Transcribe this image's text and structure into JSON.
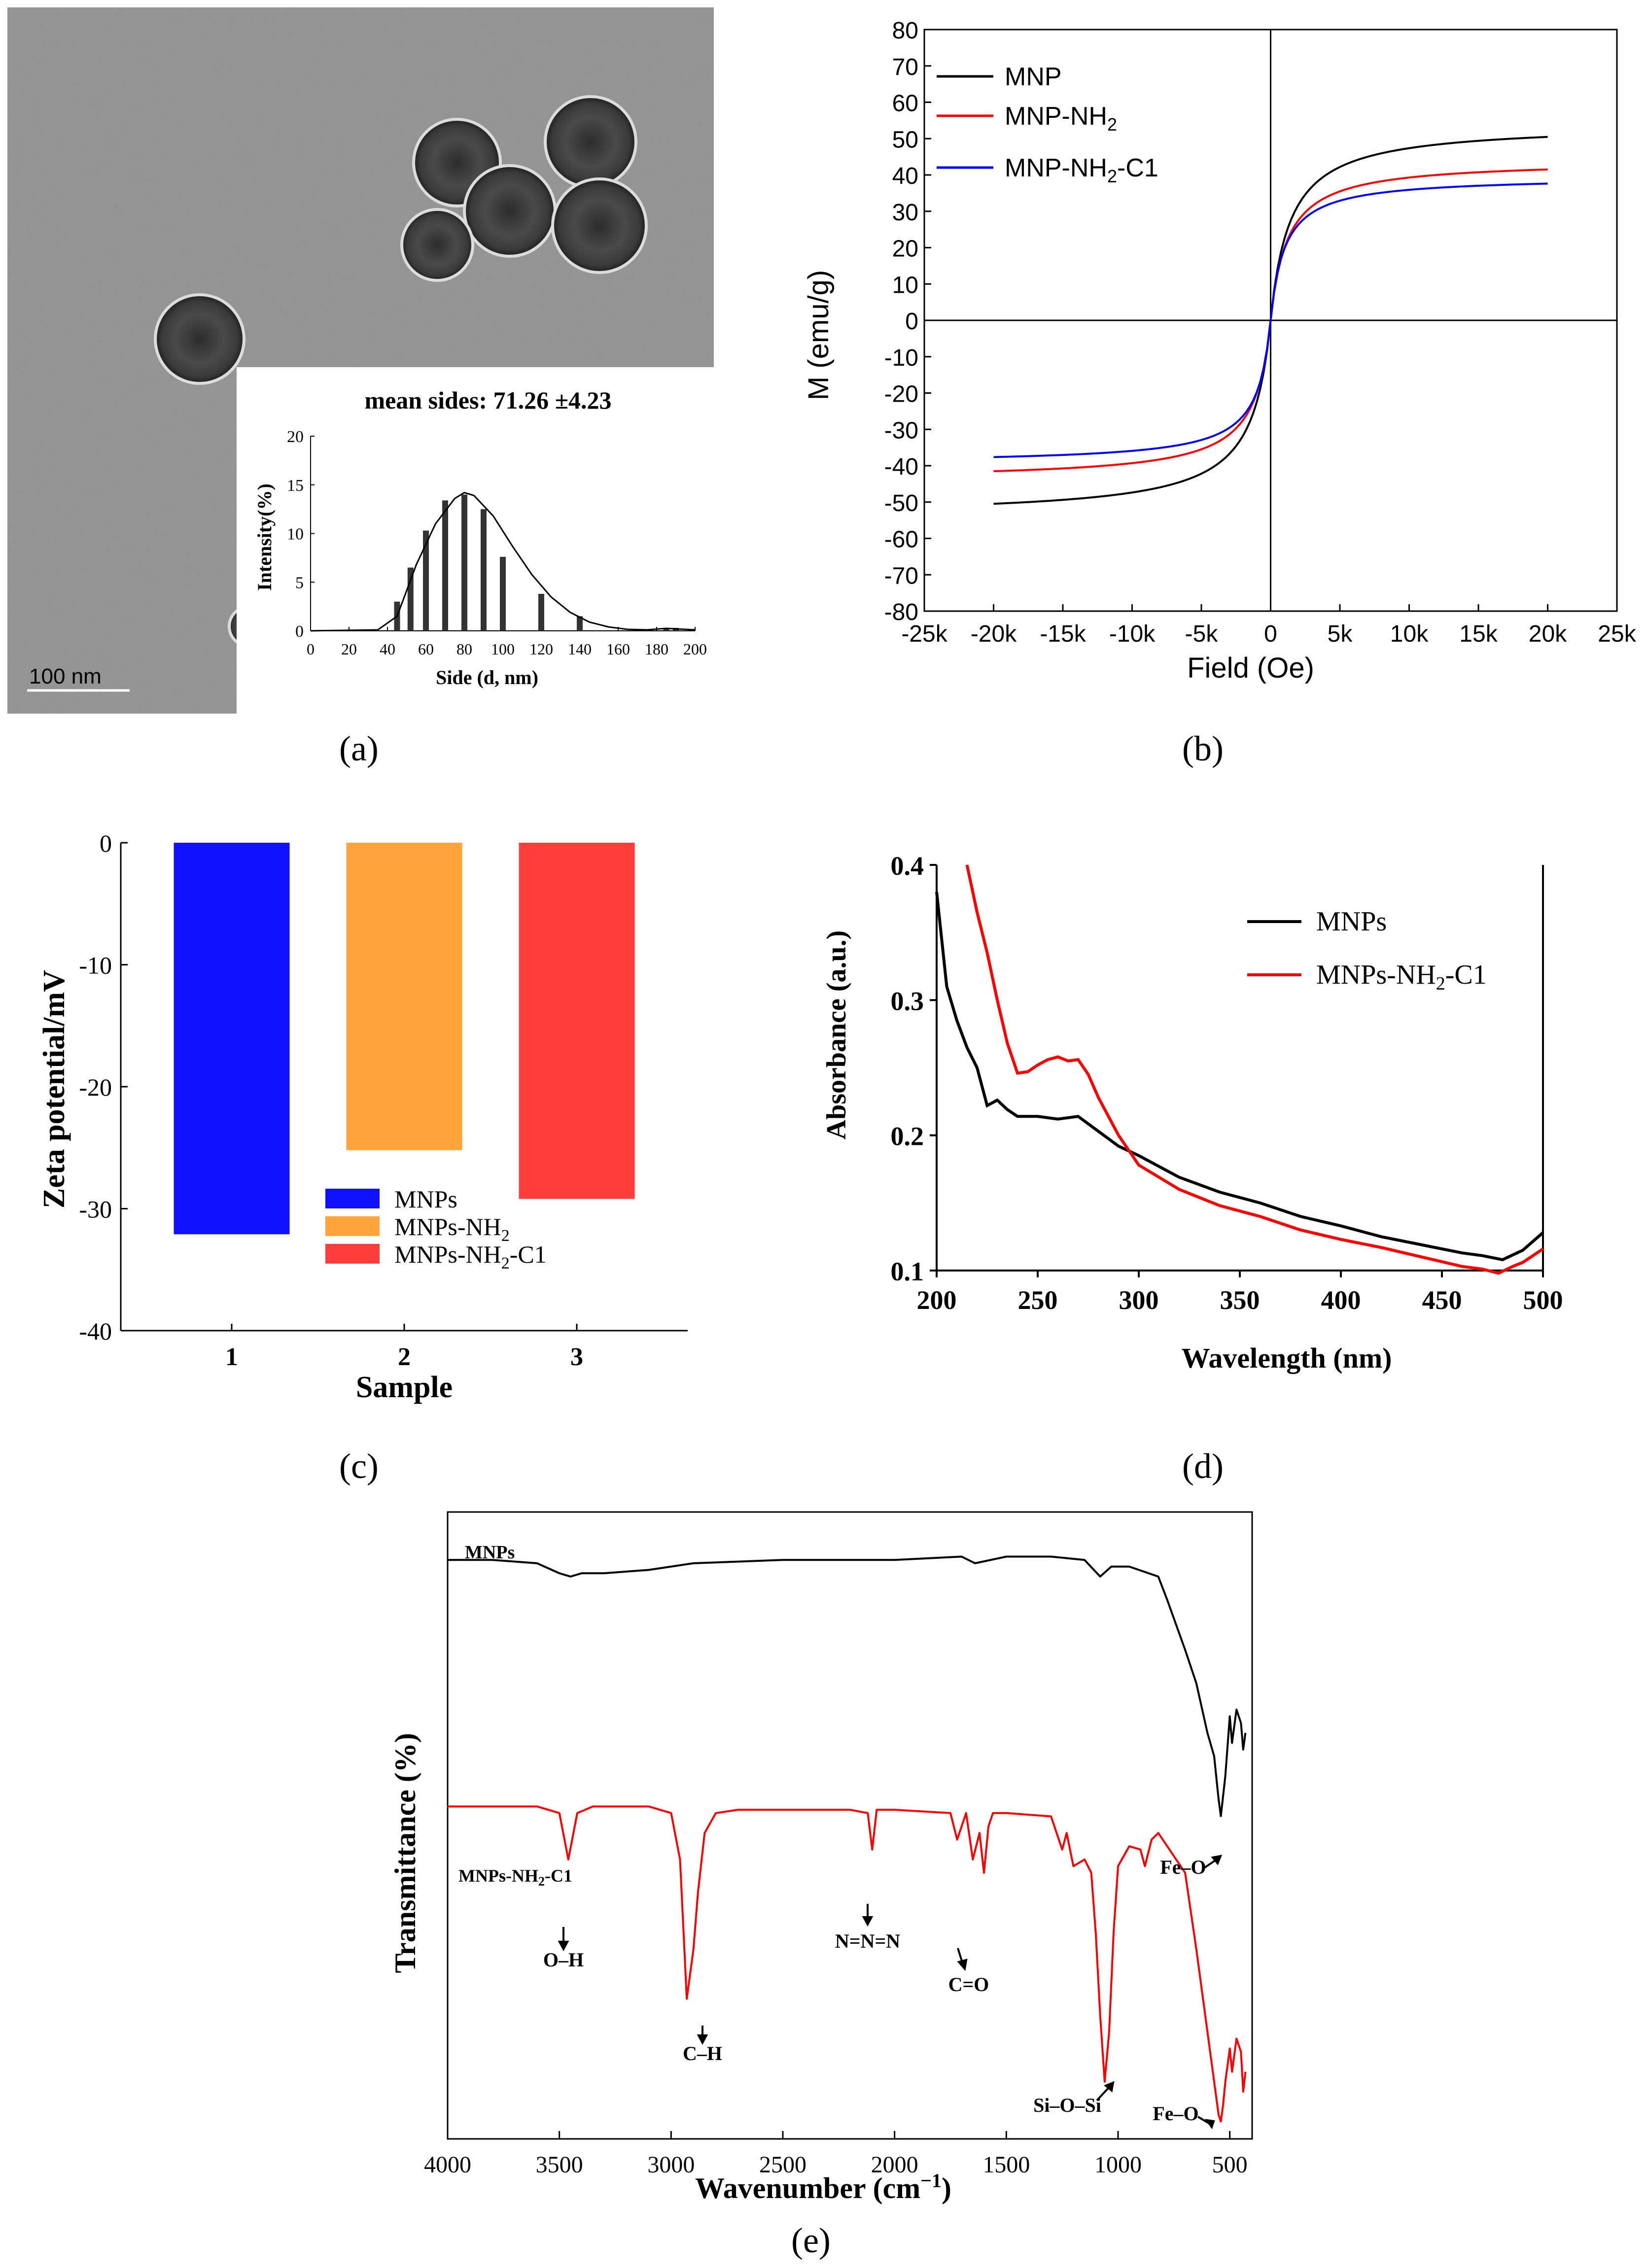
{
  "panels": {
    "a": "(a)",
    "b": "(b)",
    "c": "(c)",
    "d": "(d)",
    "e": "(e)"
  },
  "tem": {
    "scale_bar_label": "100 nm"
  },
  "colors": {
    "black": "#000000",
    "red": "#ff0000",
    "blue": "#0000ff",
    "bar_blue": "#1010ff",
    "bar_orange": "#ffa43a",
    "bar_red": "#ff3c3c"
  },
  "chart_data": [
    {
      "id": "a-inset",
      "type": "bar",
      "title": "mean sides: 71.26 ±4.23",
      "xlabel": "Side (d, nm)",
      "ylabel": "Intensity(%)",
      "xlim": [
        0,
        200
      ],
      "ylim": [
        0,
        20
      ],
      "xticks": [
        "0",
        "20",
        "40",
        "60",
        "80",
        "100",
        "120",
        "140",
        "160",
        "180",
        "200"
      ],
      "yticks": [
        "0",
        "5",
        "10",
        "15",
        "20"
      ],
      "x": [
        45,
        52,
        60,
        70,
        80,
        90,
        100,
        120,
        140,
        185,
        190
      ],
      "values": [
        3.0,
        6.5,
        10.3,
        13.4,
        14.0,
        12.5,
        7.6,
        3.8,
        1.5,
        0.2,
        0.3
      ],
      "fit_x": [
        0,
        35,
        45,
        55,
        65,
        75,
        80,
        85,
        95,
        105,
        115,
        125,
        135,
        145,
        155,
        165,
        175,
        185,
        200
      ],
      "fit_y": [
        0,
        0.1,
        1.5,
        6.8,
        11.0,
        13.6,
        14.2,
        13.9,
        11.8,
        8.7,
        5.8,
        3.5,
        1.9,
        0.9,
        0.4,
        0.15,
        0.1,
        0.25,
        0.1
      ]
    },
    {
      "id": "b",
      "type": "line",
      "xlabel": "Field (Oe)",
      "ylabel": "M (emu/g)",
      "xlim": [
        -25000,
        25000
      ],
      "ylim": [
        -80,
        80
      ],
      "xticks": [
        "-25k",
        "-20k",
        "-15k",
        "-10k",
        "-5k",
        "0",
        "5k",
        "10k",
        "15k",
        "20k",
        "25k"
      ],
      "yticks": [
        "-80",
        "-70",
        "-60",
        "-50",
        "-40",
        "-30",
        "-20",
        "-10",
        "0",
        "10",
        "20",
        "30",
        "40",
        "50",
        "60",
        "70",
        "80"
      ],
      "series": [
        {
          "name": "MNP",
          "name_main": "MNP",
          "name_sub": "",
          "name_tail": "",
          "color": "#000000",
          "ms": 54.0,
          "a": 1400
        },
        {
          "name": "MNP-NH2",
          "name_main": "MNP-NH",
          "name_sub": "2",
          "name_tail": "",
          "color": "#ff0000",
          "ms": 44.0,
          "a": 1200
        },
        {
          "name": "MNP-NH2-C1",
          "name_main": "MNP-NH",
          "name_sub": "2",
          "name_tail": "-C1",
          "color": "#0000ff",
          "ms": 39.5,
          "a": 1000
        }
      ]
    },
    {
      "id": "c",
      "type": "bar",
      "xlabel": "Sample",
      "ylabel": "Zeta potential/mV",
      "ylim": [
        -40,
        0
      ],
      "categories": [
        "1",
        "2",
        "3"
      ],
      "yticks": [
        "0",
        "-10",
        "-20",
        "-30",
        "-40"
      ],
      "values": [
        -32.1,
        -25.2,
        -29.2
      ],
      "legend": [
        {
          "main": "MNPs",
          "sub": "",
          "tail": ""
        },
        {
          "main": "MNPs-NH",
          "sub": "2",
          "tail": ""
        },
        {
          "main": "MNPs-NH",
          "sub": "2",
          "tail": "-C1"
        }
      ]
    },
    {
      "id": "d",
      "type": "line",
      "xlabel": "Wavelength (nm)",
      "ylabel": "Absorbance (a.u.)",
      "xlim": [
        200,
        500
      ],
      "ylim": [
        0.1,
        0.4
      ],
      "xticks": [
        "200",
        "250",
        "300",
        "350",
        "400",
        "450",
        "500"
      ],
      "yticks": [
        "0.1",
        "0.2",
        "0.3",
        "0.4"
      ],
      "series": [
        {
          "name": "MNPs",
          "name_main": "MNPs",
          "name_sub": "",
          "name_tail": "",
          "color": "#000000",
          "x": [
            200,
            205,
            210,
            215,
            220,
            225,
            230,
            235,
            240,
            250,
            260,
            270,
            280,
            290,
            300,
            320,
            340,
            360,
            380,
            400,
            420,
            440,
            460,
            470,
            480,
            490,
            500
          ],
          "y": [
            0.38,
            0.31,
            0.285,
            0.265,
            0.25,
            0.222,
            0.226,
            0.219,
            0.214,
            0.214,
            0.212,
            0.214,
            0.203,
            0.192,
            0.185,
            0.169,
            0.158,
            0.15,
            0.14,
            0.133,
            0.125,
            0.119,
            0.113,
            0.111,
            0.108,
            0.115,
            0.128
          ]
        },
        {
          "name": "MNPs-NH2-C1",
          "name_main": "MNPs-NH",
          "name_sub": "2",
          "name_tail": "-C1",
          "color": "#ff0000",
          "x": [
            215,
            220,
            225,
            230,
            235,
            240,
            245,
            250,
            255,
            260,
            265,
            270,
            275,
            280,
            290,
            300,
            320,
            340,
            360,
            380,
            400,
            420,
            440,
            460,
            470,
            478,
            485,
            490,
            500
          ],
          "y": [
            0.4,
            0.365,
            0.335,
            0.3,
            0.268,
            0.246,
            0.247,
            0.252,
            0.256,
            0.258,
            0.255,
            0.256,
            0.245,
            0.228,
            0.2,
            0.178,
            0.16,
            0.148,
            0.14,
            0.13,
            0.123,
            0.117,
            0.11,
            0.103,
            0.101,
            0.098,
            0.103,
            0.106,
            0.116
          ]
        }
      ]
    },
    {
      "id": "e",
      "type": "line",
      "xlabel": "Wavenumber (cm",
      "xlabel_sup": "−1",
      "xlabel_tail": ")",
      "ylabel": "Transmittance (%)",
      "xlim": [
        4000,
        400
      ],
      "xticks": [
        "4000",
        "3500",
        "3000",
        "2500",
        "2000",
        "1500",
        "1000",
        "500"
      ],
      "series": [
        {
          "name": "MNPs",
          "color": "#000000",
          "x": [
            4000,
            3800,
            3600,
            3500,
            3450,
            3400,
            3300,
            3100,
            3000,
            2900,
            2500,
            2000,
            1700,
            1640,
            1500,
            1300,
            1150,
            1080,
            1030,
            950,
            820,
            780,
            700,
            650,
            600,
            570,
            550,
            540,
            520,
            500,
            490,
            470,
            450,
            440,
            430
          ],
          "y": [
            97,
            97,
            96,
            93,
            92,
            93,
            93,
            94,
            95,
            96,
            97,
            97,
            98,
            96,
            98,
            98,
            97,
            92,
            95,
            95,
            92,
            85,
            70,
            60,
            45,
            38,
            25,
            20,
            32,
            50,
            42,
            52,
            48,
            40,
            45
          ]
        },
        {
          "name": "MNPs-NH2-C1",
          "color": "#ff0000",
          "x": [
            4000,
            3600,
            3500,
            3460,
            3420,
            3350,
            3100,
            3000,
            2960,
            2930,
            2900,
            2880,
            2850,
            2800,
            2700,
            2200,
            2120,
            2100,
            2080,
            2000,
            1750,
            1720,
            1680,
            1650,
            1620,
            1600,
            1580,
            1560,
            1500,
            1300,
            1250,
            1230,
            1200,
            1150,
            1120,
            1100,
            1080,
            1060,
            1040,
            1020,
            1000,
            950,
            900,
            880,
            850,
            820,
            800,
            780,
            700,
            650,
            600,
            570,
            550,
            540,
            530,
            520,
            500,
            490,
            470,
            450,
            440,
            430
          ],
          "y": [
            98,
            98,
            96,
            82,
            96,
            98,
            98,
            96,
            82,
            40,
            55,
            72,
            90,
            96,
            97,
            97,
            96,
            85,
            97,
            97,
            96,
            88,
            96,
            82,
            90,
            78,
            92,
            96,
            96,
            95,
            85,
            90,
            80,
            82,
            78,
            60,
            35,
            15,
            30,
            60,
            80,
            86,
            85,
            80,
            88,
            90,
            88,
            86,
            78,
            55,
            30,
            15,
            5,
            3,
            8,
            15,
            25,
            18,
            28,
            24,
            12,
            18
          ]
        }
      ],
      "labels": {
        "mnps": "MNPs",
        "mnps_nh2_c1": "MNPs-NH2-C1",
        "oh": "O–H",
        "ch": "C–H",
        "nnn": "N=N=N",
        "co": "C=O",
        "siosi": "Si–O–Si",
        "feo_top": "Fe–O",
        "feo_bottom": "Fe–O"
      }
    }
  ]
}
